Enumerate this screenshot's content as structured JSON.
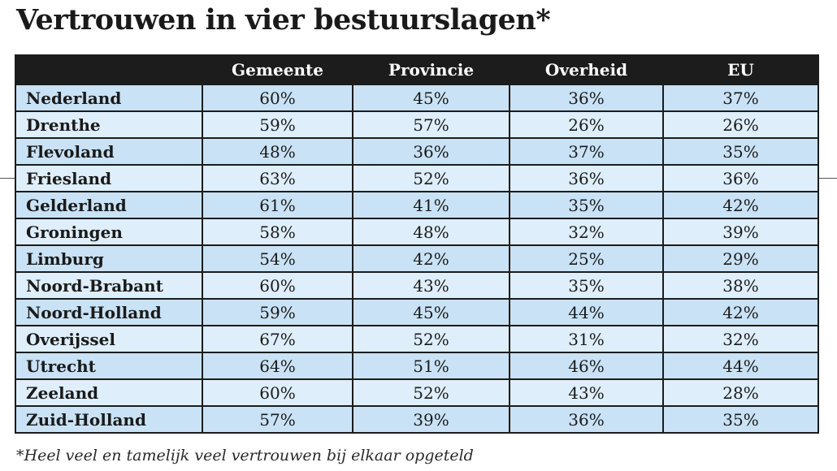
{
  "title": "Vertrouwen in vier bestuurslagen*",
  "footnote": "*Heel veel en tamelijk veel vertrouwen bij elkaar opgeteld",
  "colors": {
    "header_bg": "#1c1c1c",
    "row_shade_a": "#c9e2f5",
    "row_shade_b": "#deeefa"
  },
  "chart_data": {
    "type": "table",
    "title": "Vertrouwen in vier bestuurslagen*",
    "columns": [
      "Gemeente",
      "Provincie",
      "Overheid",
      "EU"
    ],
    "rows": [
      {
        "label": "Nederland",
        "values": [
          "60%",
          "45%",
          "36%",
          "37%"
        ]
      },
      {
        "label": "Drenthe",
        "values": [
          "59%",
          "57%",
          "26%",
          "26%"
        ]
      },
      {
        "label": "Flevoland",
        "values": [
          "48%",
          "36%",
          "37%",
          "35%"
        ]
      },
      {
        "label": "Friesland",
        "values": [
          "63%",
          "52%",
          "36%",
          "36%"
        ]
      },
      {
        "label": "Gelderland",
        "values": [
          "61%",
          "41%",
          "35%",
          "42%"
        ]
      },
      {
        "label": "Groningen",
        "values": [
          "58%",
          "48%",
          "32%",
          "39%"
        ]
      },
      {
        "label": "Limburg",
        "values": [
          "54%",
          "42%",
          "25%",
          "29%"
        ]
      },
      {
        "label": "Noord-Brabant",
        "values": [
          "60%",
          "43%",
          "35%",
          "38%"
        ]
      },
      {
        "label": "Noord-Holland",
        "values": [
          "59%",
          "45%",
          "44%",
          "42%"
        ]
      },
      {
        "label": "Overijssel",
        "values": [
          "67%",
          "52%",
          "31%",
          "32%"
        ]
      },
      {
        "label": "Utrecht",
        "values": [
          "64%",
          "51%",
          "46%",
          "44%"
        ]
      },
      {
        "label": "Zeeland",
        "values": [
          "60%",
          "52%",
          "43%",
          "28%"
        ]
      },
      {
        "label": "Zuid-Holland",
        "values": [
          "57%",
          "39%",
          "36%",
          "35%"
        ]
      }
    ],
    "footnote": "*Heel veel en tamelijk veel vertrouwen bij elkaar opgeteld"
  }
}
